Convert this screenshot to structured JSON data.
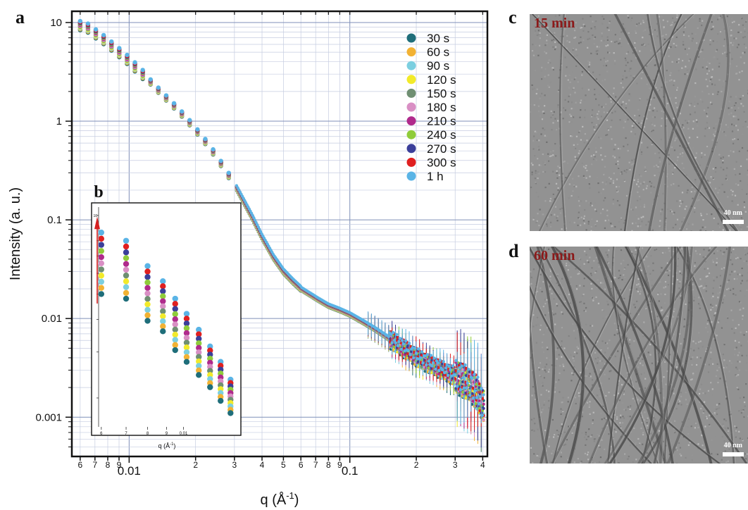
{
  "panels": {
    "a": "a",
    "b": "b",
    "c": "c",
    "d": "d"
  },
  "chart_data": [
    {
      "type": "scatter",
      "title": "",
      "xlabel": "q (Å⁻¹)",
      "ylabel": "Intensity (a. u.)",
      "xscale": "log",
      "yscale": "log",
      "xlim": [
        0.0055,
        0.42
      ],
      "ylim": [
        0.0004,
        13
      ],
      "grid": true,
      "legend_position": "top-right",
      "x_tick_labels": [
        "6",
        "7",
        "8",
        "9",
        "0.01",
        "2",
        "3",
        "4",
        "5",
        "6",
        "7",
        "8",
        "9",
        "0.1",
        "2",
        "3",
        "4"
      ],
      "y_tick_labels": [
        "0.001",
        "0.01",
        "0.1",
        "1",
        "10"
      ],
      "master_curve": {
        "x": [
          0.006,
          0.0066,
          0.0072,
          0.0079,
          0.0086,
          0.0094,
          0.0103,
          0.0113,
          0.0124,
          0.0136,
          0.015,
          0.0165,
          0.018,
          0.0195,
          0.021,
          0.023,
          0.025,
          0.027,
          0.03,
          0.033,
          0.036,
          0.04,
          0.045,
          0.05,
          0.055,
          0.06,
          0.066,
          0.072,
          0.08,
          0.09,
          0.1,
          0.115,
          0.13,
          0.15,
          0.17,
          0.19,
          0.21,
          0.24,
          0.27,
          0.3,
          0.33,
          0.36,
          0.38,
          0.4
        ],
        "y": [
          9.3,
          8.7,
          7.4,
          6.4,
          5.4,
          4.6,
          3.8,
          3.1,
          2.55,
          2.05,
          1.65,
          1.33,
          1.08,
          0.88,
          0.72,
          0.56,
          0.43,
          0.33,
          0.23,
          0.155,
          0.108,
          0.067,
          0.042,
          0.03,
          0.024,
          0.02,
          0.0175,
          0.0155,
          0.0135,
          0.0122,
          0.011,
          0.0092,
          0.0078,
          0.0063,
          0.0052,
          0.0044,
          0.0038,
          0.0033,
          0.0029,
          0.0026,
          0.0023,
          0.002,
          0.0017,
          0.0013
        ]
      },
      "series": [
        {
          "name": "30 s",
          "color": "#1f6e7a"
        },
        {
          "name": "60 s",
          "color": "#f2b233"
        },
        {
          "name": "90 s",
          "color": "#7ccfe0"
        },
        {
          "name": "120 s",
          "color": "#f2ea2a"
        },
        {
          "name": "150 s",
          "color": "#6f8f72"
        },
        {
          "name": "180 s",
          "color": "#d98fc4"
        },
        {
          "name": "210 s",
          "color": "#b02a8c"
        },
        {
          "name": "240 s",
          "color": "#8fcc3a"
        },
        {
          "name": "270 s",
          "color": "#3b3f9a"
        },
        {
          "name": "300 s",
          "color": "#e02020"
        },
        {
          "name": "1 h",
          "color": "#5ab4e6"
        }
      ]
    },
    {
      "type": "scatter",
      "title": "",
      "xlabel": "q (Å⁻¹)",
      "xscale": "log",
      "yscale": "log",
      "x_tick_labels": [
        "6",
        "7",
        "8",
        "9",
        "0.01"
      ],
      "y_tick_labels": [
        "10"
      ],
      "x": [
        0.006,
        0.007,
        0.008,
        0.0088,
        0.0095,
        0.0102,
        0.011,
        0.0118,
        0.0126,
        0.0134
      ],
      "lowest_series_y": [
        5.0,
        4.8,
        3.95,
        3.6,
        3.05,
        2.75,
        2.45,
        2.2,
        1.95,
        1.75
      ],
      "highest_series_y": [
        8.6,
        8.0,
        6.4,
        5.6,
        4.8,
        4.2,
        3.65,
        3.15,
        2.75,
        2.35
      ],
      "annotation": "red arrow: intensity increases with time"
    }
  ],
  "tem": {
    "c": {
      "time": "15 min",
      "scale": "40 nm",
      "time_color": "#8b1a1a"
    },
    "d": {
      "time": "60 min",
      "scale": "40 nm",
      "time_color": "#8b1a1a"
    }
  }
}
